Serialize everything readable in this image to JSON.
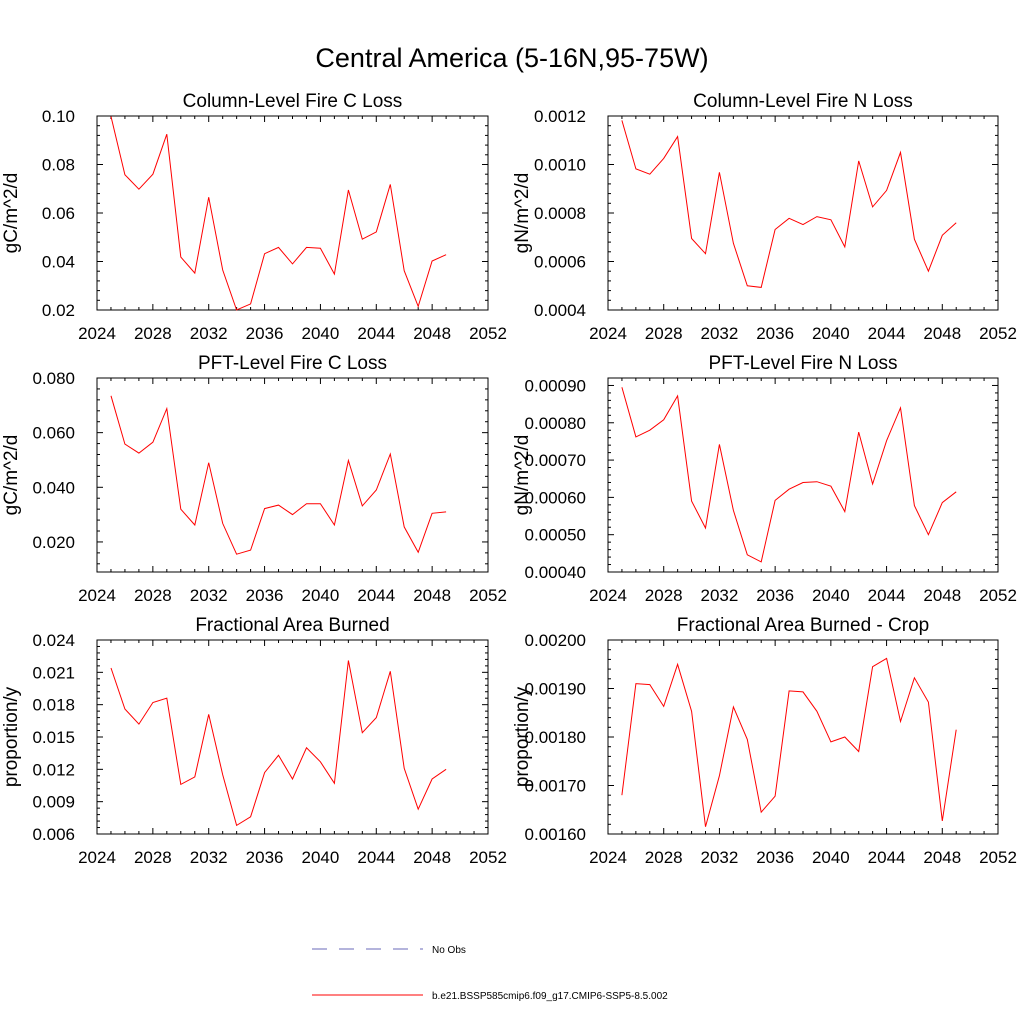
{
  "figure": {
    "title": "Central America (5-16N,95-75W)"
  },
  "legend": {
    "entries": [
      {
        "label": "No Obs",
        "color": "#6a6ab8",
        "style": "dashed"
      },
      {
        "label": "b.e21.BSSP585cmip6.f09_g17.CMIP6-SSP5-8.5.002",
        "color": "#ff0000",
        "style": "solid"
      }
    ]
  },
  "chart_data": [
    {
      "type": "line",
      "title": "Column-Level Fire C Loss",
      "ylabel": "gC/m^2/d",
      "xlim": [
        2024,
        2052
      ],
      "ylim": [
        0.02,
        0.1
      ],
      "xticks": [
        2024,
        2028,
        2032,
        2036,
        2040,
        2044,
        2048,
        2052
      ],
      "xtick_labels": [
        "2024",
        "2028",
        "2032",
        "2036",
        "2040",
        "2044",
        "2048",
        "2052"
      ],
      "yticks": [
        0.02,
        0.04,
        0.06,
        0.08,
        0.1
      ],
      "ytick_labels": [
        "0.02",
        "0.04",
        "0.06",
        "0.08",
        "0.10"
      ],
      "series": [
        {
          "color": "#ff0000",
          "x": [
            2025,
            2026,
            2027,
            2028,
            2029,
            2030,
            2031,
            2032,
            2033,
            2034,
            2035,
            2036,
            2037,
            2038,
            2039,
            2040,
            2041,
            2042,
            2043,
            2044,
            2045,
            2046,
            2047,
            2048,
            2049
          ],
          "y": [
            0.0998,
            0.0758,
            0.0698,
            0.076,
            0.0925,
            0.0418,
            0.0352,
            0.0665,
            0.0365,
            0.02,
            0.0225,
            0.0432,
            0.0458,
            0.039,
            0.0458,
            0.0455,
            0.0348,
            0.0695,
            0.0492,
            0.0522,
            0.0718,
            0.0362,
            0.0215,
            0.0402,
            0.0428
          ]
        }
      ]
    },
    {
      "type": "line",
      "title": "Column-Level Fire N Loss",
      "ylabel": "gN/m^2/d",
      "xlim": [
        2024,
        2052
      ],
      "ylim": [
        0.0004,
        0.0012
      ],
      "xticks": [
        2024,
        2028,
        2032,
        2036,
        2040,
        2044,
        2048,
        2052
      ],
      "xtick_labels": [
        "2024",
        "2028",
        "2032",
        "2036",
        "2040",
        "2044",
        "2048",
        "2052"
      ],
      "yticks": [
        0.0004,
        0.0006,
        0.0008,
        0.001,
        0.0012
      ],
      "ytick_labels": [
        "0.0004",
        "0.0006",
        "0.0008",
        "0.0010",
        "0.0012"
      ],
      "series": [
        {
          "color": "#ff0000",
          "x": [
            2025,
            2026,
            2027,
            2028,
            2029,
            2030,
            2031,
            2032,
            2033,
            2034,
            2035,
            2036,
            2037,
            2038,
            2039,
            2040,
            2041,
            2042,
            2043,
            2044,
            2045,
            2046,
            2047,
            2048,
            2049
          ],
          "y": [
            0.001182,
            0.000982,
            0.00096,
            0.001025,
            0.001115,
            0.000695,
            0.000632,
            0.000968,
            0.000675,
            0.0005,
            0.000493,
            0.000732,
            0.000778,
            0.000752,
            0.000785,
            0.000772,
            0.00066,
            0.001015,
            0.000825,
            0.000893,
            0.00105,
            0.000692,
            0.00056,
            0.000708,
            0.00076
          ]
        }
      ]
    },
    {
      "type": "line",
      "title": "PFT-Level Fire C Loss",
      "ylabel": "gC/m^2/d",
      "xlim": [
        2024,
        2052
      ],
      "ylim": [
        0.009,
        0.08
      ],
      "xticks": [
        2024,
        2028,
        2032,
        2036,
        2040,
        2044,
        2048,
        2052
      ],
      "xtick_labels": [
        "2024",
        "2028",
        "2032",
        "2036",
        "2040",
        "2044",
        "2048",
        "2052"
      ],
      "yticks": [
        0.02,
        0.04,
        0.06,
        0.08
      ],
      "ytick_labels": [
        "0.020",
        "0.040",
        "0.060",
        "0.080"
      ],
      "series": [
        {
          "color": "#ff0000",
          "x": [
            2025,
            2026,
            2027,
            2028,
            2029,
            2030,
            2031,
            2032,
            2033,
            2034,
            2035,
            2036,
            2037,
            2038,
            2039,
            2040,
            2041,
            2042,
            2043,
            2044,
            2045,
            2046,
            2047,
            2048,
            2049
          ],
          "y": [
            0.0735,
            0.0558,
            0.0525,
            0.0565,
            0.0688,
            0.032,
            0.0262,
            0.049,
            0.0268,
            0.0155,
            0.017,
            0.0322,
            0.0335,
            0.03,
            0.034,
            0.034,
            0.0262,
            0.0498,
            0.0332,
            0.039,
            0.0522,
            0.0255,
            0.0162,
            0.0305,
            0.031
          ]
        }
      ]
    },
    {
      "type": "line",
      "title": "PFT-Level Fire N Loss",
      "ylabel": "gN/m^2/d",
      "xlim": [
        2024,
        2052
      ],
      "ylim": [
        0.0004,
        0.00092
      ],
      "xticks": [
        2024,
        2028,
        2032,
        2036,
        2040,
        2044,
        2048,
        2052
      ],
      "xtick_labels": [
        "2024",
        "2028",
        "2032",
        "2036",
        "2040",
        "2044",
        "2048",
        "2052"
      ],
      "yticks": [
        0.0004,
        0.0005,
        0.0006,
        0.0007,
        0.0008,
        0.0009
      ],
      "ytick_labels": [
        "0.00040",
        "0.00050",
        "0.00060",
        "0.00070",
        "0.00080",
        "0.00090"
      ],
      "series": [
        {
          "color": "#ff0000",
          "x": [
            2025,
            2026,
            2027,
            2028,
            2029,
            2030,
            2031,
            2032,
            2033,
            2034,
            2035,
            2036,
            2037,
            2038,
            2039,
            2040,
            2041,
            2042,
            2043,
            2044,
            2045,
            2046,
            2047,
            2048,
            2049
          ],
          "y": [
            0.000895,
            0.000762,
            0.00078,
            0.000808,
            0.000872,
            0.00059,
            0.000518,
            0.000742,
            0.000565,
            0.000446,
            0.000427,
            0.000592,
            0.000622,
            0.00064,
            0.000642,
            0.00063,
            0.000562,
            0.000775,
            0.000636,
            0.000752,
            0.00084,
            0.000578,
            0.0005,
            0.000586,
            0.000615
          ]
        }
      ]
    },
    {
      "type": "line",
      "title": "Fractional Area Burned",
      "ylabel": "proportion/y",
      "xlim": [
        2024,
        2052
      ],
      "ylim": [
        0.006,
        0.024
      ],
      "xticks": [
        2024,
        2028,
        2032,
        2036,
        2040,
        2044,
        2048,
        2052
      ],
      "xtick_labels": [
        "2024",
        "2028",
        "2032",
        "2036",
        "2040",
        "2044",
        "2048",
        "2052"
      ],
      "yticks": [
        0.006,
        0.009,
        0.012,
        0.015,
        0.018,
        0.021,
        0.024
      ],
      "ytick_labels": [
        "0.006",
        "0.009",
        "0.012",
        "0.015",
        "0.018",
        "0.021",
        "0.024"
      ],
      "series": [
        {
          "color": "#ff0000",
          "x": [
            2025,
            2026,
            2027,
            2028,
            2029,
            2030,
            2031,
            2032,
            2033,
            2034,
            2035,
            2036,
            2037,
            2038,
            2039,
            2040,
            2041,
            2042,
            2043,
            2044,
            2045,
            2046,
            2047,
            2048,
            2049
          ],
          "y": [
            0.0214,
            0.0176,
            0.0162,
            0.0182,
            0.0186,
            0.0106,
            0.0113,
            0.0171,
            0.0115,
            0.0068,
            0.0076,
            0.0117,
            0.0133,
            0.0111,
            0.014,
            0.0127,
            0.0107,
            0.0221,
            0.0154,
            0.0168,
            0.0211,
            0.0121,
            0.0083,
            0.0111,
            0.012
          ]
        }
      ]
    },
    {
      "type": "line",
      "title": "Fractional Area Burned - Crop",
      "ylabel": "proportion/y",
      "xlim": [
        2024,
        2052
      ],
      "ylim": [
        0.0016,
        0.002
      ],
      "xticks": [
        2024,
        2028,
        2032,
        2036,
        2040,
        2044,
        2048,
        2052
      ],
      "xtick_labels": [
        "2024",
        "2028",
        "2032",
        "2036",
        "2040",
        "2044",
        "2048",
        "2052"
      ],
      "yticks": [
        0.0016,
        0.0017,
        0.0018,
        0.0019,
        0.002
      ],
      "ytick_labels": [
        "0.00160",
        "0.00170",
        "0.00180",
        "0.00190",
        "0.00200"
      ],
      "series": [
        {
          "color": "#ff0000",
          "x": [
            2025,
            2026,
            2027,
            2028,
            2029,
            2030,
            2031,
            2032,
            2033,
            2034,
            2035,
            2036,
            2037,
            2038,
            2039,
            2040,
            2041,
            2042,
            2043,
            2044,
            2045,
            2046,
            2047,
            2048,
            2049
          ],
          "y": [
            0.00168,
            0.00191,
            0.001908,
            0.001863,
            0.00195,
            0.001853,
            0.001615,
            0.00172,
            0.001862,
            0.001795,
            0.001645,
            0.001678,
            0.001895,
            0.001893,
            0.001853,
            0.00179,
            0.0018,
            0.00177,
            0.001945,
            0.001962,
            0.001832,
            0.001922,
            0.001872,
            0.001627,
            0.001815
          ]
        }
      ]
    }
  ]
}
